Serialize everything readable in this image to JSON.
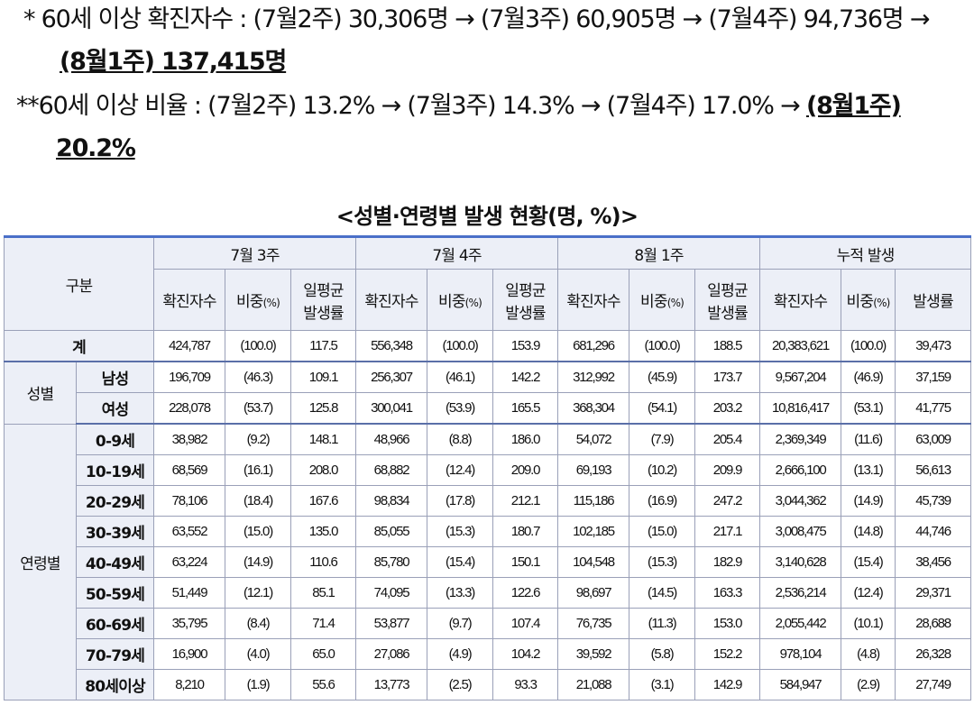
{
  "notes": {
    "line1_prefix": "* 60세 이상 확진자수 : (7월2주) 30,306명 → (7월3주) 60,905명 → (7월4주) 94,736명 →",
    "line1_emph": "(8월1주) 137,415명",
    "line2_prefix": "**60세 이상 비율 : (7월2주) 13.2% → (7월3주) 14.3% → (7월4주) 17.0% →",
    "line2_emph_a": "(8월1주)",
    "line2_emph_b": "20.2%"
  },
  "table_title": "<성별·연령별 발생 현황(명, %)>",
  "table": {
    "header_group_label": "구분",
    "periods": [
      "7월 3주",
      "7월 4주",
      "8월 1주",
      "누적 발생"
    ],
    "sub_headers": {
      "cases": "확진자수",
      "share": "비중",
      "share_unit": "(%)",
      "daily_rate_line1": "일평균",
      "daily_rate_line2": "발생률",
      "rate": "발생률"
    },
    "total_row": {
      "label": "계",
      "values": [
        "424,787",
        "(100.0)",
        "117.5",
        "556,348",
        "(100.0)",
        "153.9",
        "681,296",
        "(100.0)",
        "188.5",
        "20,383,621",
        "(100.0)",
        "39,473"
      ]
    },
    "gender_group_label": "성별",
    "gender_rows": [
      {
        "label": "남성",
        "values": [
          "196,709",
          "(46.3)",
          "109.1",
          "256,307",
          "(46.1)",
          "142.2",
          "312,992",
          "(45.9)",
          "173.7",
          "9,567,204",
          "(46.9)",
          "37,159"
        ]
      },
      {
        "label": "여성",
        "values": [
          "228,078",
          "(53.7)",
          "125.8",
          "300,041",
          "(53.9)",
          "165.5",
          "368,304",
          "(54.1)",
          "203.2",
          "10,816,417",
          "(53.1)",
          "41,775"
        ]
      }
    ],
    "age_group_label": "연령별",
    "age_rows": [
      {
        "label": "0-9세",
        "values": [
          "38,982",
          "(9.2)",
          "148.1",
          "48,966",
          "(8.8)",
          "186.0",
          "54,072",
          "(7.9)",
          "205.4",
          "2,369,349",
          "(11.6)",
          "63,009"
        ]
      },
      {
        "label": "10-19세",
        "values": [
          "68,569",
          "(16.1)",
          "208.0",
          "68,882",
          "(12.4)",
          "209.0",
          "69,193",
          "(10.2)",
          "209.9",
          "2,666,100",
          "(13.1)",
          "56,613"
        ]
      },
      {
        "label": "20-29세",
        "values": [
          "78,106",
          "(18.4)",
          "167.6",
          "98,834",
          "(17.8)",
          "212.1",
          "115,186",
          "(16.9)",
          "247.2",
          "3,044,362",
          "(14.9)",
          "45,739"
        ]
      },
      {
        "label": "30-39세",
        "values": [
          "63,552",
          "(15.0)",
          "135.0",
          "85,055",
          "(15.3)",
          "180.7",
          "102,185",
          "(15.0)",
          "217.1",
          "3,008,475",
          "(14.8)",
          "44,746"
        ]
      },
      {
        "label": "40-49세",
        "values": [
          "63,224",
          "(14.9)",
          "110.6",
          "85,780",
          "(15.4)",
          "150.1",
          "104,548",
          "(15.3)",
          "182.9",
          "3,140,628",
          "(15.4)",
          "38,456"
        ]
      },
      {
        "label": "50-59세",
        "values": [
          "51,449",
          "(12.1)",
          "85.1",
          "74,095",
          "(13.3)",
          "122.6",
          "98,697",
          "(14.5)",
          "163.3",
          "2,536,214",
          "(12.4)",
          "29,371"
        ]
      },
      {
        "label": "60-69세",
        "values": [
          "35,795",
          "(8.4)",
          "71.4",
          "53,877",
          "(9.7)",
          "107.4",
          "76,735",
          "(11.3)",
          "153.0",
          "2,055,442",
          "(10.1)",
          "28,688"
        ]
      },
      {
        "label": "70-79세",
        "values": [
          "16,900",
          "(4.0)",
          "65.0",
          "27,086",
          "(4.9)",
          "104.2",
          "39,592",
          "(5.8)",
          "152.2",
          "978,104",
          "(4.8)",
          "26,328"
        ]
      },
      {
        "label": "80세이상",
        "values": [
          "8,210",
          "(1.9)",
          "55.6",
          "13,773",
          "(2.5)",
          "93.3",
          "21,088",
          "(3.1)",
          "142.9",
          "584,947",
          "(2.9)",
          "27,749"
        ]
      }
    ]
  }
}
